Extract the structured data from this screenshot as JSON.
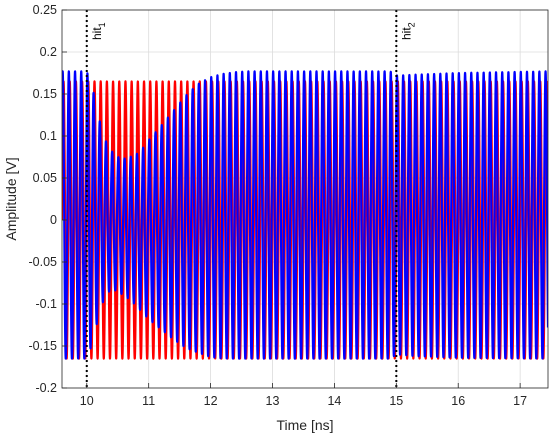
{
  "chart_data": {
    "type": "line",
    "title": "",
    "xlabel": "Time [ns]",
    "ylabel": "Amplitude [V]",
    "xlim": [
      9.6,
      17.45
    ],
    "ylim": [
      -0.2,
      0.25
    ],
    "grid": true,
    "x_ticks": [
      10,
      11,
      12,
      13,
      14,
      15,
      16,
      17
    ],
    "x_tick_labels": [
      "10",
      "11",
      "12",
      "13",
      "14",
      "15",
      "16",
      "17"
    ],
    "y_ticks": [
      -0.2,
      -0.15,
      -0.1,
      -0.05,
      0,
      0.05,
      0.1,
      0.15,
      0.2,
      0.25
    ],
    "y_tick_labels": [
      "-0.2",
      "-0.15",
      "-0.1",
      "-0.05",
      "0",
      "0.05",
      "0.1",
      "0.15",
      "0.2",
      "0.25"
    ],
    "oscillation_frequency_ghz": 10,
    "series": [
      {
        "color": "#ff0000",
        "envelope_x": [
          9.6,
          17.45
        ],
        "envelope_upper": [
          0.165,
          0.165
        ],
        "envelope_lower": [
          -0.165,
          -0.165
        ]
      },
      {
        "color": "#0000ff",
        "envelope_x": [
          9.6,
          10.0,
          10.1,
          10.2,
          10.3,
          10.4,
          10.5,
          10.6,
          10.7,
          10.8,
          10.9,
          11.0,
          11.2,
          11.4,
          11.6,
          11.8,
          12.0,
          12.2,
          12.4,
          12.6,
          13.0,
          14.0,
          14.9,
          15.0,
          15.3,
          16.0,
          17.45
        ],
        "envelope_upper": [
          0.177,
          0.177,
          0.155,
          0.12,
          0.095,
          0.082,
          0.075,
          0.073,
          0.075,
          0.078,
          0.085,
          0.095,
          0.112,
          0.13,
          0.148,
          0.162,
          0.17,
          0.174,
          0.176,
          0.177,
          0.177,
          0.177,
          0.177,
          0.172,
          0.173,
          0.175,
          0.177
        ],
        "envelope_lower": [
          -0.165,
          -0.165,
          -0.145,
          -0.11,
          -0.09,
          -0.082,
          -0.085,
          -0.09,
          -0.095,
          -0.102,
          -0.11,
          -0.118,
          -0.13,
          -0.142,
          -0.152,
          -0.158,
          -0.163,
          -0.165,
          -0.165,
          -0.165,
          -0.165,
          -0.165,
          -0.165,
          -0.16,
          -0.162,
          -0.164,
          -0.165
        ]
      }
    ],
    "markers": [
      {
        "x": 10.0,
        "label": "hit",
        "subscript": "1"
      },
      {
        "x": 15.0,
        "label": "hit",
        "subscript": "2"
      }
    ]
  }
}
